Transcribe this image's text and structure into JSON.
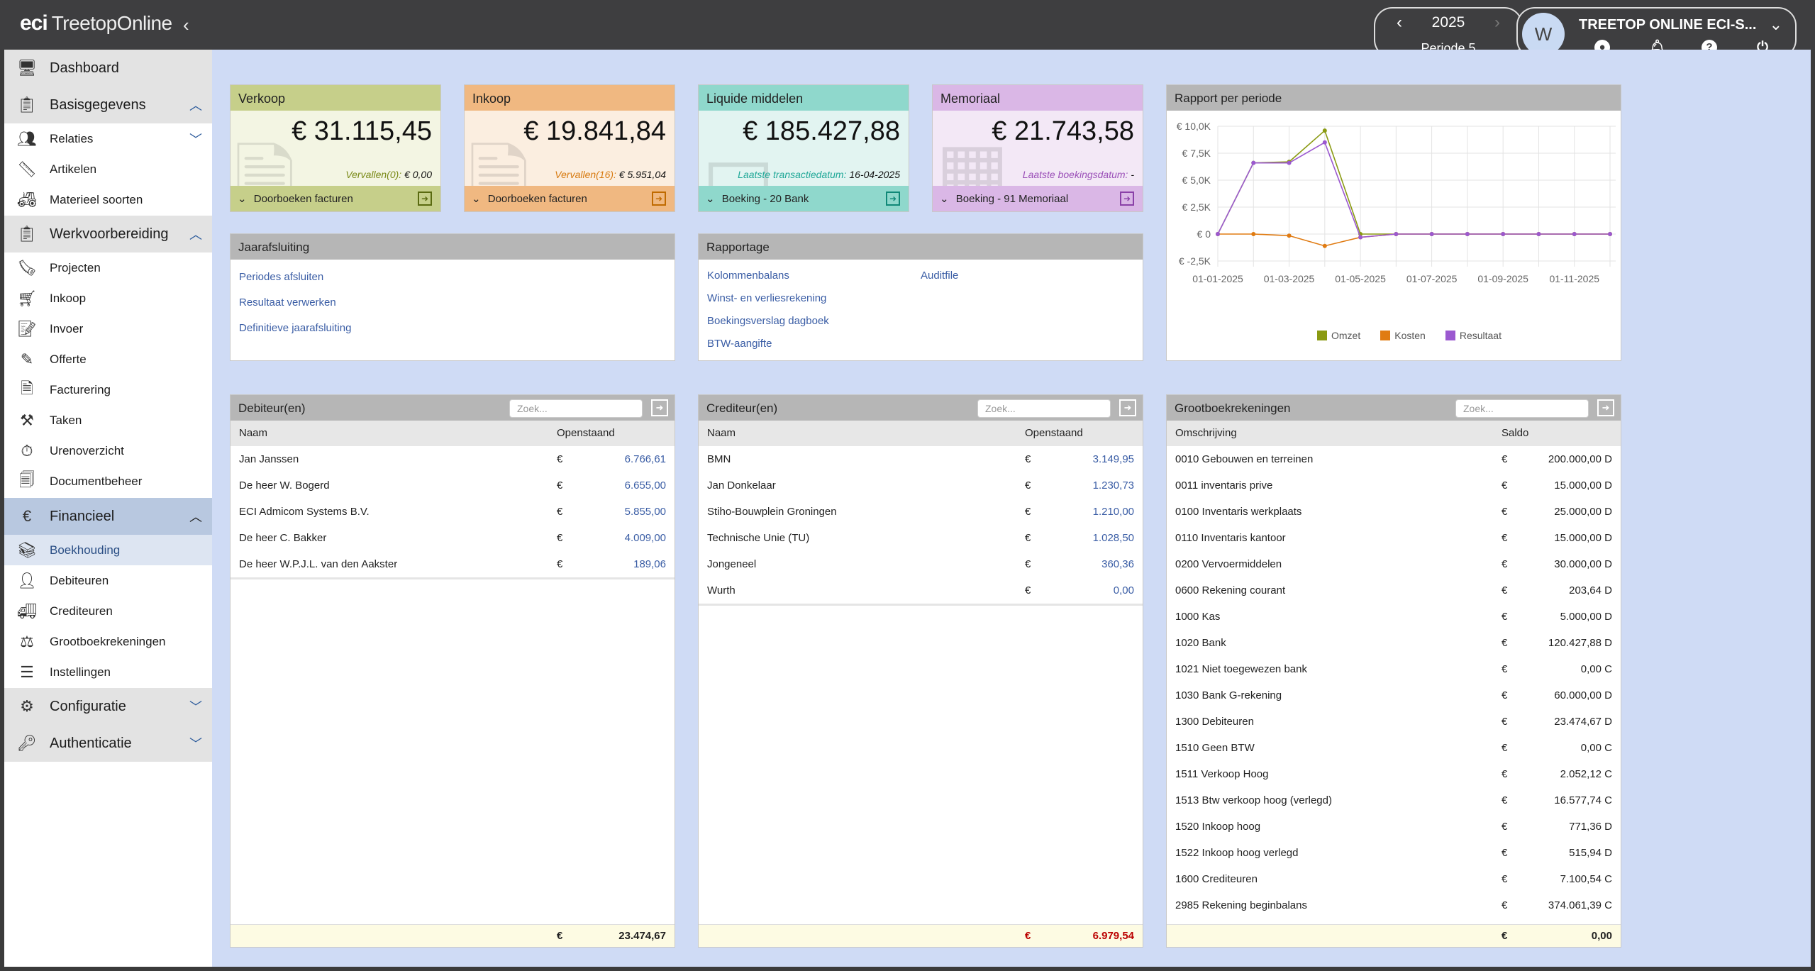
{
  "app": {
    "logo_eci": "eci",
    "logo_name": "TreetopOnline",
    "collapse_icon": "‹"
  },
  "period": {
    "year": "2025",
    "period": "Periode 5"
  },
  "user": {
    "avatar": "W",
    "name": "TREETOP ONLINE ECI-S..."
  },
  "sidebar": {
    "dashboard": "Dashboard",
    "basisgegevens": "Basisgegevens",
    "relaties": "Relaties",
    "artikelen": "Artikelen",
    "materieel": "Materieel soorten",
    "werkvoorbereiding": "Werkvoorbereiding",
    "projecten": "Projecten",
    "inkoop": "Inkoop",
    "invoer": "Invoer",
    "offerte": "Offerte",
    "facturering": "Facturering",
    "taken": "Taken",
    "urenoverzicht": "Urenoverzicht",
    "documentbeheer": "Documentbeheer",
    "financieel": "Financieel",
    "boekhouding": "Boekhouding",
    "debiteuren": "Debiteuren",
    "crediteuren": "Crediteuren",
    "grootboek": "Grootboekrekeningen",
    "instellingen": "Instellingen",
    "configuratie": "Configuratie",
    "authenticatie": "Authenticatie"
  },
  "cards": {
    "verkoop": {
      "title": "Verkoop",
      "value": "€ 31.115,45",
      "sub_label": "Vervallen(0):",
      "sub_value": "€ 0,00",
      "footer": "Doorboeken facturen",
      "accent": "#7a8a18"
    },
    "inkoop": {
      "title": "Inkoop",
      "value": "€ 19.841,84",
      "sub_label": "Vervallen(16):",
      "sub_value": "€ 5.951,04",
      "footer": "Doorboeken facturen",
      "accent": "#d77a10"
    },
    "liquide": {
      "title": "Liquide middelen",
      "value": "€ 185.427,88",
      "sub_label": "Laatste transactiedatum:",
      "sub_value": "16-04-2025",
      "footer": "Boeking - 20 Bank",
      "accent": "#20a898"
    },
    "memoriaal": {
      "title": "Memoriaal",
      "value": "€ 21.743,58",
      "sub_label": "Laatste boekingsdatum:",
      "sub_value": "-",
      "footer": "Boeking - 91 Memoriaal",
      "accent": "#9b50b8"
    }
  },
  "jaarafsluiting": {
    "title": "Jaarafsluiting",
    "links": [
      "Periodes afsluiten",
      "Resultaat verwerken",
      "Definitieve jaarafsluiting"
    ]
  },
  "rapportage": {
    "title": "Rapportage",
    "links_left": [
      "Kolommenbalans",
      "Winst- en verliesrekening",
      "Boekingsverslag dagboek",
      "BTW-aangifte"
    ],
    "links_right": [
      "Auditfile"
    ]
  },
  "chart_panel": {
    "title": "Rapport per periode"
  },
  "chart_data": {
    "type": "line",
    "title": "",
    "x": [
      "01-01-2025",
      "01-02-2025",
      "01-03-2025",
      "01-04-2025",
      "01-05-2025",
      "01-06-2025",
      "01-07-2025",
      "01-08-2025",
      "01-09-2025",
      "01-10-2025",
      "01-11-2025",
      "01-12-2025"
    ],
    "x_tick_labels": [
      "01-01-2025",
      "01-03-2025",
      "01-05-2025",
      "01-07-2025",
      "01-09-2025",
      "01-11-2025"
    ],
    "y_tick_labels": [
      "€ 10,0K",
      "€ 7,5K",
      "€ 5,0K",
      "€ 2,5K",
      "€ 0",
      "€ -2,5K"
    ],
    "ylim": [
      -2500,
      10000
    ],
    "grid": true,
    "legend_position": "bottom",
    "series": [
      {
        "name": "Omzet",
        "color": "#8a9a12",
        "values": [
          0,
          6600,
          6700,
          9600,
          0,
          0,
          0,
          0,
          0,
          0,
          0,
          0
        ]
      },
      {
        "name": "Kosten",
        "color": "#e07b12",
        "values": [
          0,
          0,
          -150,
          -1100,
          -300,
          0,
          0,
          0,
          0,
          0,
          0,
          0
        ]
      },
      {
        "name": "Resultaat",
        "color": "#9b59d0",
        "values": [
          0,
          6600,
          6600,
          8500,
          -300,
          0,
          0,
          0,
          0,
          0,
          0,
          0
        ]
      }
    ]
  },
  "debiteuren": {
    "title": "Debiteur(en)",
    "search": "Zoek...",
    "col_name": "Naam",
    "col_amount": "Openstaand",
    "currency": "€",
    "rows": [
      {
        "name": "Jan Janssen",
        "amount": "6.766,61"
      },
      {
        "name": "De heer W. Bogerd",
        "amount": "6.655,00"
      },
      {
        "name": "ECI Admicom Systems B.V.",
        "amount": "5.855,00"
      },
      {
        "name": "De heer C. Bakker",
        "amount": "4.009,00"
      },
      {
        "name": "De heer W.P.J.L. van den Aakster",
        "amount": "189,06"
      }
    ],
    "total": "23.474,67"
  },
  "crediteuren": {
    "title": "Crediteur(en)",
    "search": "Zoek...",
    "col_name": "Naam",
    "col_amount": "Openstaand",
    "currency": "€",
    "rows": [
      {
        "name": "BMN",
        "amount": "3.149,95"
      },
      {
        "name": "Jan Donkelaar",
        "amount": "1.230,73"
      },
      {
        "name": "Stiho-Bouwplein Groningen",
        "amount": "1.210,00"
      },
      {
        "name": "Technische Unie (TU)",
        "amount": "1.028,50"
      },
      {
        "name": "Jongeneel",
        "amount": "360,36"
      },
      {
        "name": "Wurth",
        "amount": "0,00"
      }
    ],
    "total": "6.979,54"
  },
  "grootboek": {
    "title": "Grootboekrekeningen",
    "search": "Zoek...",
    "col_name": "Omschrijving",
    "col_amount": "Saldo",
    "currency": "€",
    "rows": [
      {
        "name": "0010 Gebouwen en terreinen",
        "amount": "200.000,00 D"
      },
      {
        "name": "0011 inventaris prive",
        "amount": "15.000,00 D"
      },
      {
        "name": "0100 Inventaris werkplaats",
        "amount": "25.000,00 D"
      },
      {
        "name": "0110 Inventaris kantoor",
        "amount": "15.000,00 D"
      },
      {
        "name": "0200 Vervoermiddelen",
        "amount": "30.000,00 D"
      },
      {
        "name": "0600 Rekening courant",
        "amount": "203,64 D"
      },
      {
        "name": "1000 Kas",
        "amount": "5.000,00 D"
      },
      {
        "name": "1020 Bank",
        "amount": "120.427,88 D"
      },
      {
        "name": "1021 Niet toegewezen bank",
        "amount": "0,00 C"
      },
      {
        "name": "1030 Bank G-rekening",
        "amount": "60.000,00 D"
      },
      {
        "name": "1300 Debiteuren",
        "amount": "23.474,67 D"
      },
      {
        "name": "1510 Geen BTW",
        "amount": "0,00 C"
      },
      {
        "name": "1511 Verkoop Hoog",
        "amount": "2.052,12 C"
      },
      {
        "name": "1513 Btw verkoop hoog (verlegd)",
        "amount": "16.577,74 C"
      },
      {
        "name": "1520 Inkoop hoog",
        "amount": "771,36 D"
      },
      {
        "name": "1522 Inkoop hoog verlegd",
        "amount": "515,94 D"
      },
      {
        "name": "1600 Crediteuren",
        "amount": "7.100,54 C"
      },
      {
        "name": "2985 Rekening beginbalans",
        "amount": "374.061,39 C"
      }
    ],
    "total": "0,00"
  }
}
